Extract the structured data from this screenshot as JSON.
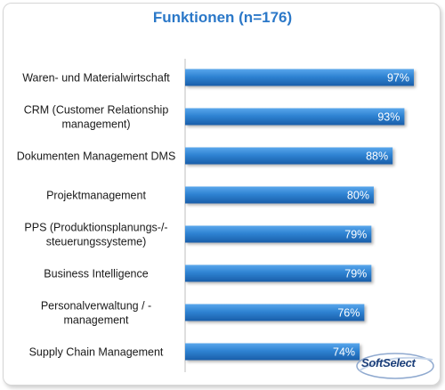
{
  "chart_data": {
    "type": "bar",
    "orientation": "horizontal",
    "title": "Funktionen (n=176)",
    "categories": [
      [
        "Waren- und Materialwirtschaft"
      ],
      [
        "CRM (Customer Relationship",
        "management)"
      ],
      [
        "Dokumenten Management DMS"
      ],
      [
        "Projektmanagement"
      ],
      [
        "PPS (Produktionsplanungs-/-",
        "steuerungssysteme)"
      ],
      [
        "Business Intelligence"
      ],
      [
        "Personalverwaltung / -",
        "management"
      ],
      [
        "Supply Chain Management"
      ]
    ],
    "values": [
      97,
      93,
      88,
      80,
      79,
      79,
      76,
      74
    ],
    "value_labels": [
      "97%",
      "93%",
      "88%",
      "80%",
      "79%",
      "79%",
      "76%",
      "74%"
    ],
    "xlim": [
      0,
      100
    ],
    "grid": false,
    "legend": "none",
    "bar_color": "#2f83d3"
  },
  "logo": {
    "text": "SoftSelect"
  }
}
